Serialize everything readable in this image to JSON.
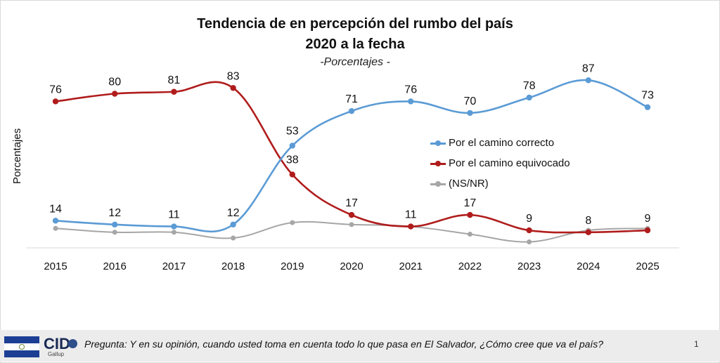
{
  "colors": {
    "correcto": "#5b9bd5",
    "equivocado": "#b01c1c",
    "nsnr": "#a6a6a6",
    "axis": "#d9d9d9"
  },
  "chart_data": {
    "type": "line",
    "title": "Tendencia de en percepción del rumbo del país",
    "title_line2": "2020 a la fecha",
    "subtitle": "-Porcentajes -",
    "ylabel": "Porcentajes",
    "xlabel": "",
    "categories": [
      "2015",
      "2016",
      "2017",
      "2018",
      "2019",
      "2020",
      "2021",
      "2022",
      "2023",
      "2024",
      "2025"
    ],
    "series": [
      {
        "name": "Por el camino correcto",
        "values": [
          14,
          12,
          11,
          12,
          53,
          71,
          76,
          70,
          78,
          87,
          73
        ],
        "labels": [
          "14",
          "12",
          "11",
          "12",
          "53",
          "71",
          "76",
          "70",
          "78",
          "87",
          "73"
        ]
      },
      {
        "name": "Por el camino equivocado",
        "values": [
          76,
          80,
          81,
          83,
          38,
          17,
          11,
          17,
          9,
          8,
          9
        ],
        "labels": [
          "76",
          "80",
          "81",
          "83",
          "38",
          "17",
          "11",
          "17",
          "9",
          "8",
          "9"
        ]
      },
      {
        "name": "(NS/NR)",
        "values": [
          10,
          8,
          8,
          5,
          13,
          12,
          11,
          7,
          3,
          9,
          10
        ]
      }
    ],
    "legend": "right-center",
    "grid": false
  },
  "footer": {
    "brand": "CID",
    "brand_sub": "Gallup",
    "question": "Pregunta: Y en su opinión, cuando usted toma en cuenta todo lo que pasa en El Salvador, ¿Cómo cree que va el país?",
    "page": "1"
  }
}
